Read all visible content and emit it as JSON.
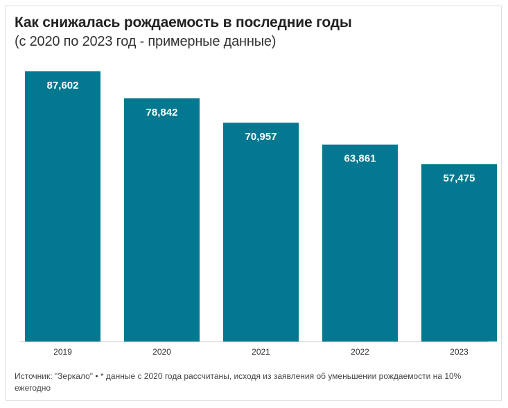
{
  "title": "Как снижалась рождаемость в последние годы",
  "subtitle": "(с 2020 по 2023 год - примерные данные)",
  "source_label": "Источник: \"Зеркало\"",
  "footnote_separator": " • ",
  "footnote": "* данные с 2020 года рассчитаны, исходя из заявления об уменьшении рождаемости на 10% ежегодно",
  "colors": {
    "bar": "#037890",
    "bar_label": "#ffffff",
    "axis_line": "#cccccc",
    "tick_label": "#333333"
  },
  "chart_data": {
    "type": "bar",
    "title": "Как снижалась рождаемость в последние годы",
    "subtitle": "(с 2020 по 2023 год - примерные данные)",
    "xlabel": "",
    "ylabel": "",
    "categories": [
      "2019",
      "2020",
      "2021",
      "2022",
      "2023"
    ],
    "values": [
      87602,
      78842,
      70957,
      63861,
      57475
    ],
    "value_labels": [
      "87,602",
      "78,842",
      "70,957",
      "63,861",
      "57,475"
    ],
    "ylim": [
      0,
      87602
    ],
    "grid": false,
    "legend": "none"
  }
}
